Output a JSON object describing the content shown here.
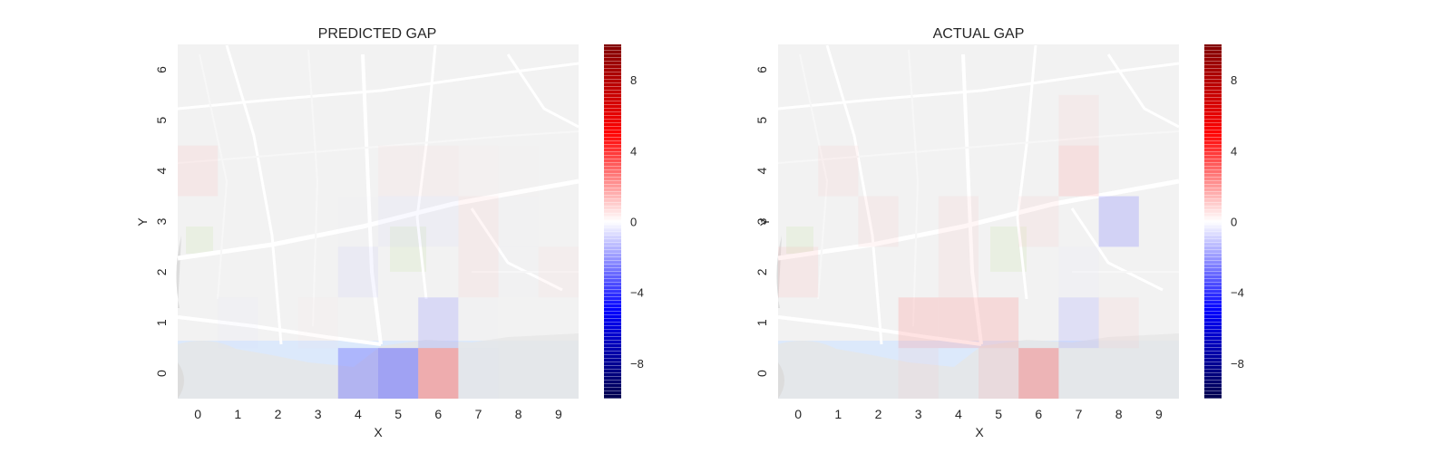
{
  "chart_data": [
    {
      "type": "heatmap",
      "title": "PREDICTED GAP",
      "xlabel": "X",
      "ylabel": "Y",
      "x_ticks": [
        "0",
        "1",
        "2",
        "3",
        "4",
        "5",
        "6",
        "7",
        "8",
        "9"
      ],
      "y_ticks": [
        "0",
        "1",
        "2",
        "3",
        "4",
        "5",
        "6"
      ],
      "grid": false,
      "background": "street map",
      "colormap": "seismic",
      "vmin": -10,
      "vmax": 10,
      "colorbar_ticks": [
        "8",
        "4",
        "0",
        "−4",
        "−8"
      ],
      "colorbar_values": [
        8,
        4,
        0,
        -4,
        -8
      ],
      "values": [
        [
          0.0,
          0.0,
          0.0,
          0.0,
          -6.5,
          -7.5,
          7.0,
          -1.5,
          0.0,
          0.0
        ],
        [
          0.0,
          -1.5,
          0.5,
          1.5,
          0.0,
          0.0,
          -4.5,
          -1.0,
          0.0,
          0.0
        ],
        [
          0.0,
          0.0,
          0.0,
          0.5,
          -2.5,
          0.0,
          0.0,
          2.5,
          -1.0,
          2.0
        ],
        [
          0.0,
          0.0,
          0.0,
          0.0,
          -1.0,
          -2.0,
          -2.0,
          2.5,
          -1.0,
          0.0
        ],
        [
          3.0,
          0.0,
          0.0,
          0.0,
          0.0,
          2.0,
          2.0,
          1.5,
          1.0,
          0.0
        ],
        [
          0.0,
          0.0,
          0.0,
          0.0,
          0.0,
          0.0,
          0.0,
          0.0,
          0.0,
          0.0
        ],
        [
          0.0,
          0.0,
          0.0,
          0.0,
          0.0,
          0.0,
          0.0,
          0.0,
          0.0,
          0.0
        ]
      ]
    },
    {
      "type": "heatmap",
      "title": "ACTUAL GAP",
      "xlabel": "X",
      "ylabel": "Y",
      "x_ticks": [
        "0",
        "1",
        "2",
        "3",
        "4",
        "5",
        "6",
        "7",
        "8",
        "9"
      ],
      "y_ticks": [
        "0",
        "1",
        "2",
        "3",
        "4",
        "5",
        "6"
      ],
      "grid": false,
      "background": "street map",
      "colormap": "seismic",
      "vmin": -10,
      "vmax": 10,
      "colorbar_ticks": [
        "8",
        "4",
        "0",
        "−4",
        "−8"
      ],
      "colorbar_values": [
        8,
        4,
        0,
        -4,
        -8
      ],
      "values": [
        [
          0.0,
          0.0,
          0.0,
          2.5,
          0.0,
          3.5,
          6.5,
          0.0,
          0.0,
          0.0
        ],
        [
          0.0,
          0.0,
          0.0,
          4.5,
          4.5,
          4.5,
          0.0,
          -4.0,
          2.5,
          0.0
        ],
        [
          3.0,
          0.0,
          0.0,
          0.0,
          2.5,
          0.0,
          0.0,
          -1.5,
          0.0,
          0.0
        ],
        [
          0.0,
          0.0,
          2.5,
          0.0,
          2.5,
          0.0,
          2.5,
          0.0,
          -5.0,
          0.0
        ],
        [
          0.0,
          2.5,
          0.0,
          0.0,
          0.0,
          0.0,
          0.0,
          4.0,
          0.0,
          0.0
        ],
        [
          0.0,
          0.0,
          0.0,
          0.0,
          0.0,
          0.0,
          0.0,
          2.5,
          0.0,
          0.0
        ],
        [
          0.0,
          0.0,
          0.0,
          0.0,
          0.0,
          0.0,
          0.0,
          0.0,
          0.0,
          0.0
        ]
      ]
    }
  ]
}
